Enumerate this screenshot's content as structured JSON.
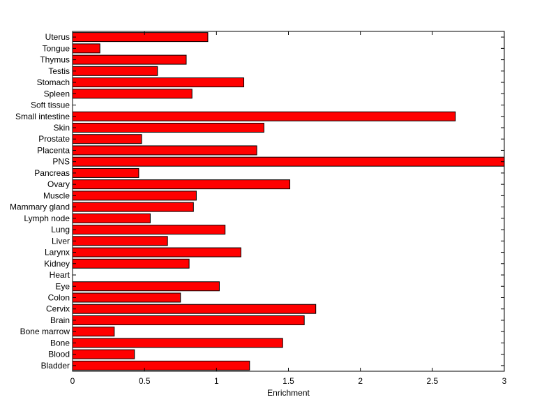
{
  "chart_data": {
    "type": "bar",
    "orientation": "horizontal",
    "title": "",
    "xlabel": "Enrichment",
    "ylabel": "",
    "xlim": [
      0,
      3
    ],
    "xticks": [
      0,
      0.5,
      1,
      1.5,
      2,
      2.5,
      3
    ],
    "xtick_labels": [
      "0",
      "0.5",
      "1",
      "1.5",
      "2",
      "2.5",
      "3"
    ],
    "grid": false,
    "legend": "none",
    "bar_color": "#ff0000",
    "bar_edge_color": "#000000",
    "categories": [
      "Bladder",
      "Blood",
      "Bone",
      "Bone marrow",
      "Brain",
      "Cervix",
      "Colon",
      "Eye",
      "Heart",
      "Kidney",
      "Larynx",
      "Liver",
      "Lung",
      "Lymph node",
      "Mammary gland",
      "Muscle",
      "Ovary",
      "Pancreas",
      "PNS",
      "Placenta",
      "Prostate",
      "Skin",
      "Small intestine",
      "Soft tissue",
      "Spleen",
      "Stomach",
      "Testis",
      "Thymus",
      "Tongue",
      "Uterus"
    ],
    "values": [
      1.23,
      0.43,
      1.46,
      0.29,
      1.61,
      1.69,
      0.75,
      1.02,
      0.0,
      0.81,
      1.17,
      0.66,
      1.06,
      0.54,
      0.84,
      0.86,
      1.51,
      0.46,
      3.0,
      1.28,
      0.48,
      1.33,
      2.66,
      0.0,
      0.83,
      1.19,
      0.59,
      0.79,
      0.19,
      0.94
    ]
  }
}
